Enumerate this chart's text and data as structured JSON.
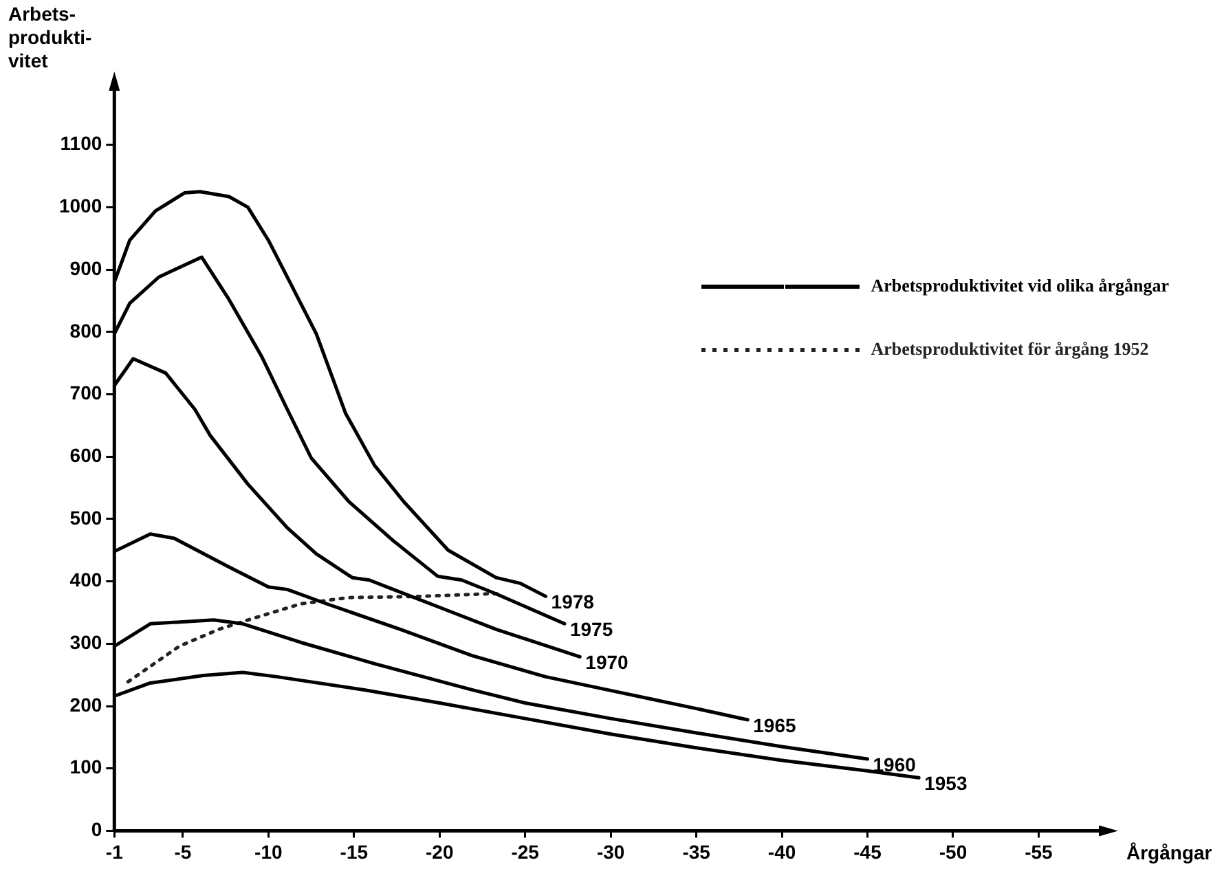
{
  "chart_data": {
    "type": "line",
    "xlabel": "Årgångar",
    "ylabel": "Arbets-\nprodukti-\nvitet",
    "xlim": [
      -1,
      -59
    ],
    "xticks": [
      -1,
      -5,
      -10,
      -15,
      -20,
      -25,
      -30,
      -35,
      -40,
      -45,
      -50,
      -55
    ],
    "ylim": [
      0,
      1200
    ],
    "yticks": [
      0,
      100,
      200,
      300,
      400,
      500,
      600,
      700,
      800,
      900,
      1000,
      1100
    ],
    "grid": false,
    "legend": "top right",
    "marker": "none",
    "series": [
      {
        "name": "Arbetsproduktivitet vid olika årgångar",
        "color": "#000000",
        "line_style": "solid",
        "x": [
          -1,
          -1.9,
          -3.4,
          -5.1,
          -6,
          -7.7,
          -8.8,
          -10,
          -11.1,
          -12.8,
          -14.5,
          -16.2,
          -17.9,
          -20.5,
          -23.3,
          -24.7,
          -26.2
        ],
        "values": [
          880,
          947,
          994,
          1023,
          1025,
          1017,
          1000,
          947,
          888,
          797,
          670,
          586,
          528,
          450,
          406,
          397,
          376
        ]
      },
      {
        "color": "#000000",
        "line_style": "solid",
        "x": [
          -1,
          -1.9,
          -3.6,
          -6.1,
          -7.7,
          -9.6,
          -11.1,
          -12.5,
          -14.7,
          -17.3,
          -19.9,
          -21.3,
          -23.3,
          -27.3
        ],
        "values": [
          797,
          846,
          888,
          920,
          852,
          761,
          676,
          598,
          528,
          465,
          408,
          402,
          380,
          332
        ]
      },
      {
        "color": "#000000",
        "line_style": "solid",
        "x": [
          -1,
          -2.1,
          -4,
          -5.7,
          -6.6,
          -8.8,
          -11.1,
          -12.8,
          -14.9,
          -15.9,
          -17.3,
          -20.5,
          -23.3,
          -28.2
        ],
        "values": [
          714,
          757,
          734,
          676,
          634,
          556,
          486,
          444,
          406,
          402,
          387,
          353,
          323,
          279
        ]
      },
      {
        "color": "#000000",
        "line_style": "solid",
        "x": [
          -1,
          -3.1,
          -4.5,
          -7.7,
          -10,
          -11.1,
          -13.4,
          -17.7,
          -21.9,
          -26.2,
          -30,
          -32.4,
          -35,
          -38
        ],
        "values": [
          448,
          476,
          469,
          423,
          391,
          387,
          364,
          323,
          281,
          247,
          225,
          211,
          196,
          178
        ]
      },
      {
        "color": "#000000",
        "line_style": "solid",
        "x": [
          -1,
          -3.1,
          -6.8,
          -8.5,
          -11.9,
          -16.2,
          -21.9,
          -25,
          -30,
          -35,
          -40,
          -45
        ],
        "values": [
          296,
          332,
          338,
          332,
          302,
          268,
          226,
          205,
          180,
          157,
          135,
          115
        ]
      },
      {
        "color": "#000000",
        "line_style": "solid",
        "x": [
          -1,
          -3.1,
          -6.2,
          -8.5,
          -10.5,
          -15.6,
          -20,
          -25,
          -30,
          -35,
          -40,
          -45,
          -48
        ],
        "values": [
          216,
          237,
          249,
          254,
          247,
          226,
          205,
          180,
          155,
          133,
          113,
          96,
          85
        ]
      },
      {
        "name": "Arbetsproduktivitet för årgång 1952",
        "color": "#222222",
        "line_style": "dotted",
        "x": [
          -1.8,
          -4.8,
          -7.1,
          -8.8,
          -11.9,
          -14.7,
          -19,
          -22.8,
          -23.5
        ],
        "values": [
          239,
          296,
          323,
          338,
          364,
          374,
          376,
          380,
          380
        ]
      }
    ],
    "annotations": [
      {
        "text": "1978",
        "x": -26.2,
        "y": 376
      },
      {
        "text": "1975",
        "x": -27.3,
        "y": 332
      },
      {
        "text": "1970",
        "x": -28.2,
        "y": 279
      },
      {
        "text": "1965",
        "x": -38,
        "y": 178
      },
      {
        "text": "1960",
        "x": -45,
        "y": 115
      },
      {
        "text": "1953",
        "x": -48,
        "y": 85
      }
    ]
  }
}
